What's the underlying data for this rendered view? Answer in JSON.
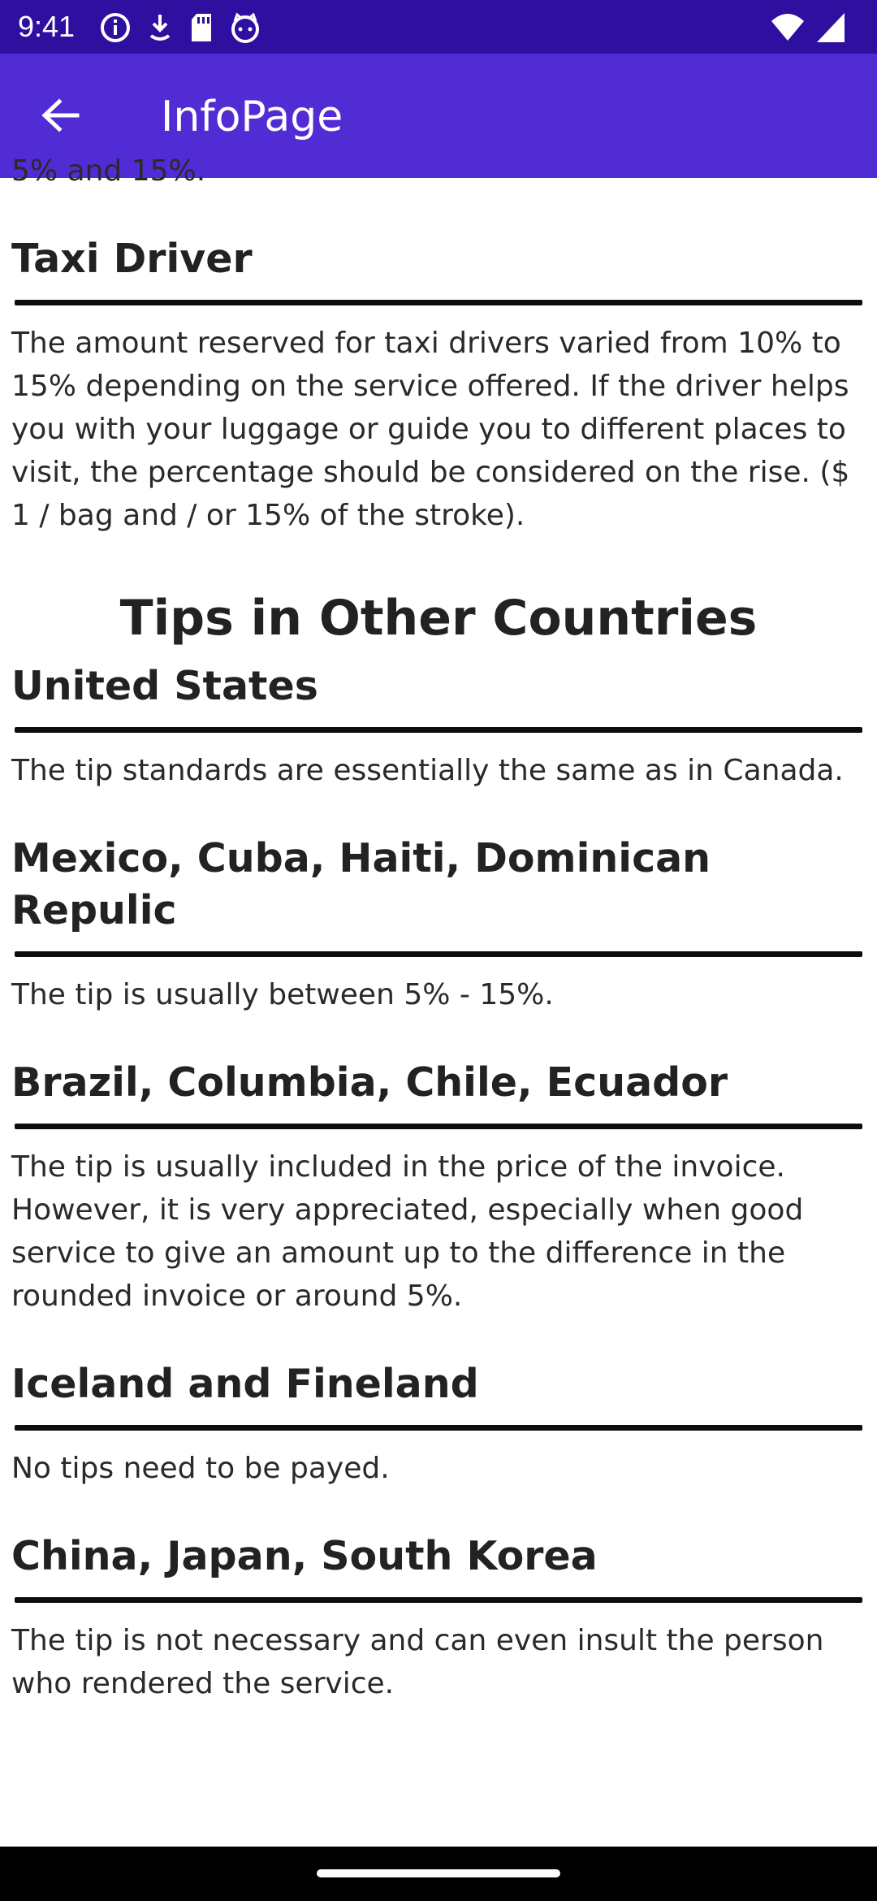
{
  "status_bar": {
    "time": "9:41",
    "icons_left": [
      "info-icon",
      "download-icon",
      "sd-card-icon",
      "cat-face-icon"
    ],
    "icons_right": [
      "wifi-icon",
      "signal-icon"
    ]
  },
  "app_bar": {
    "back_icon": "arrow-left-icon",
    "title": "InfoPage"
  },
  "content": {
    "partial_text": "5% and 15%.",
    "taxi": {
      "title": "Taxi Driver",
      "body": "The amount reserved for taxi drivers varied from 10% to 15% depending on the service offered. If the driver helps you with your luggage or guide you to different places to visit, the percentage should be considered on the rise. ($ 1 / bag and / or 15% of the stroke)."
    },
    "heading": "Tips in Other Countries",
    "countries": [
      {
        "title": "United States",
        "body": "The tip standards are essentially the same as in Canada."
      },
      {
        "title": "Mexico, Cuba, Haiti, Dominican Repulic",
        "body": "The tip is usually between 5% - 15%."
      },
      {
        "title": "Brazil, Columbia, Chile, Ecuador",
        "body": "The tip is usually included in the price of the invoice. However, it is very appreciated, especially when good service to give an amount up to the difference in the rounded invoice or around 5%."
      },
      {
        "title": "Iceland and Fineland",
        "body": "No tips need to be payed."
      },
      {
        "title": "China, Japan, South Korea",
        "body": "The tip is not necessary and can even insult the person who rendered the service."
      }
    ]
  },
  "colors": {
    "status_bar": "#2e0fa0",
    "app_bar": "#512bd4",
    "divider": "#0d0d0d",
    "nav_bar": "#000000"
  }
}
